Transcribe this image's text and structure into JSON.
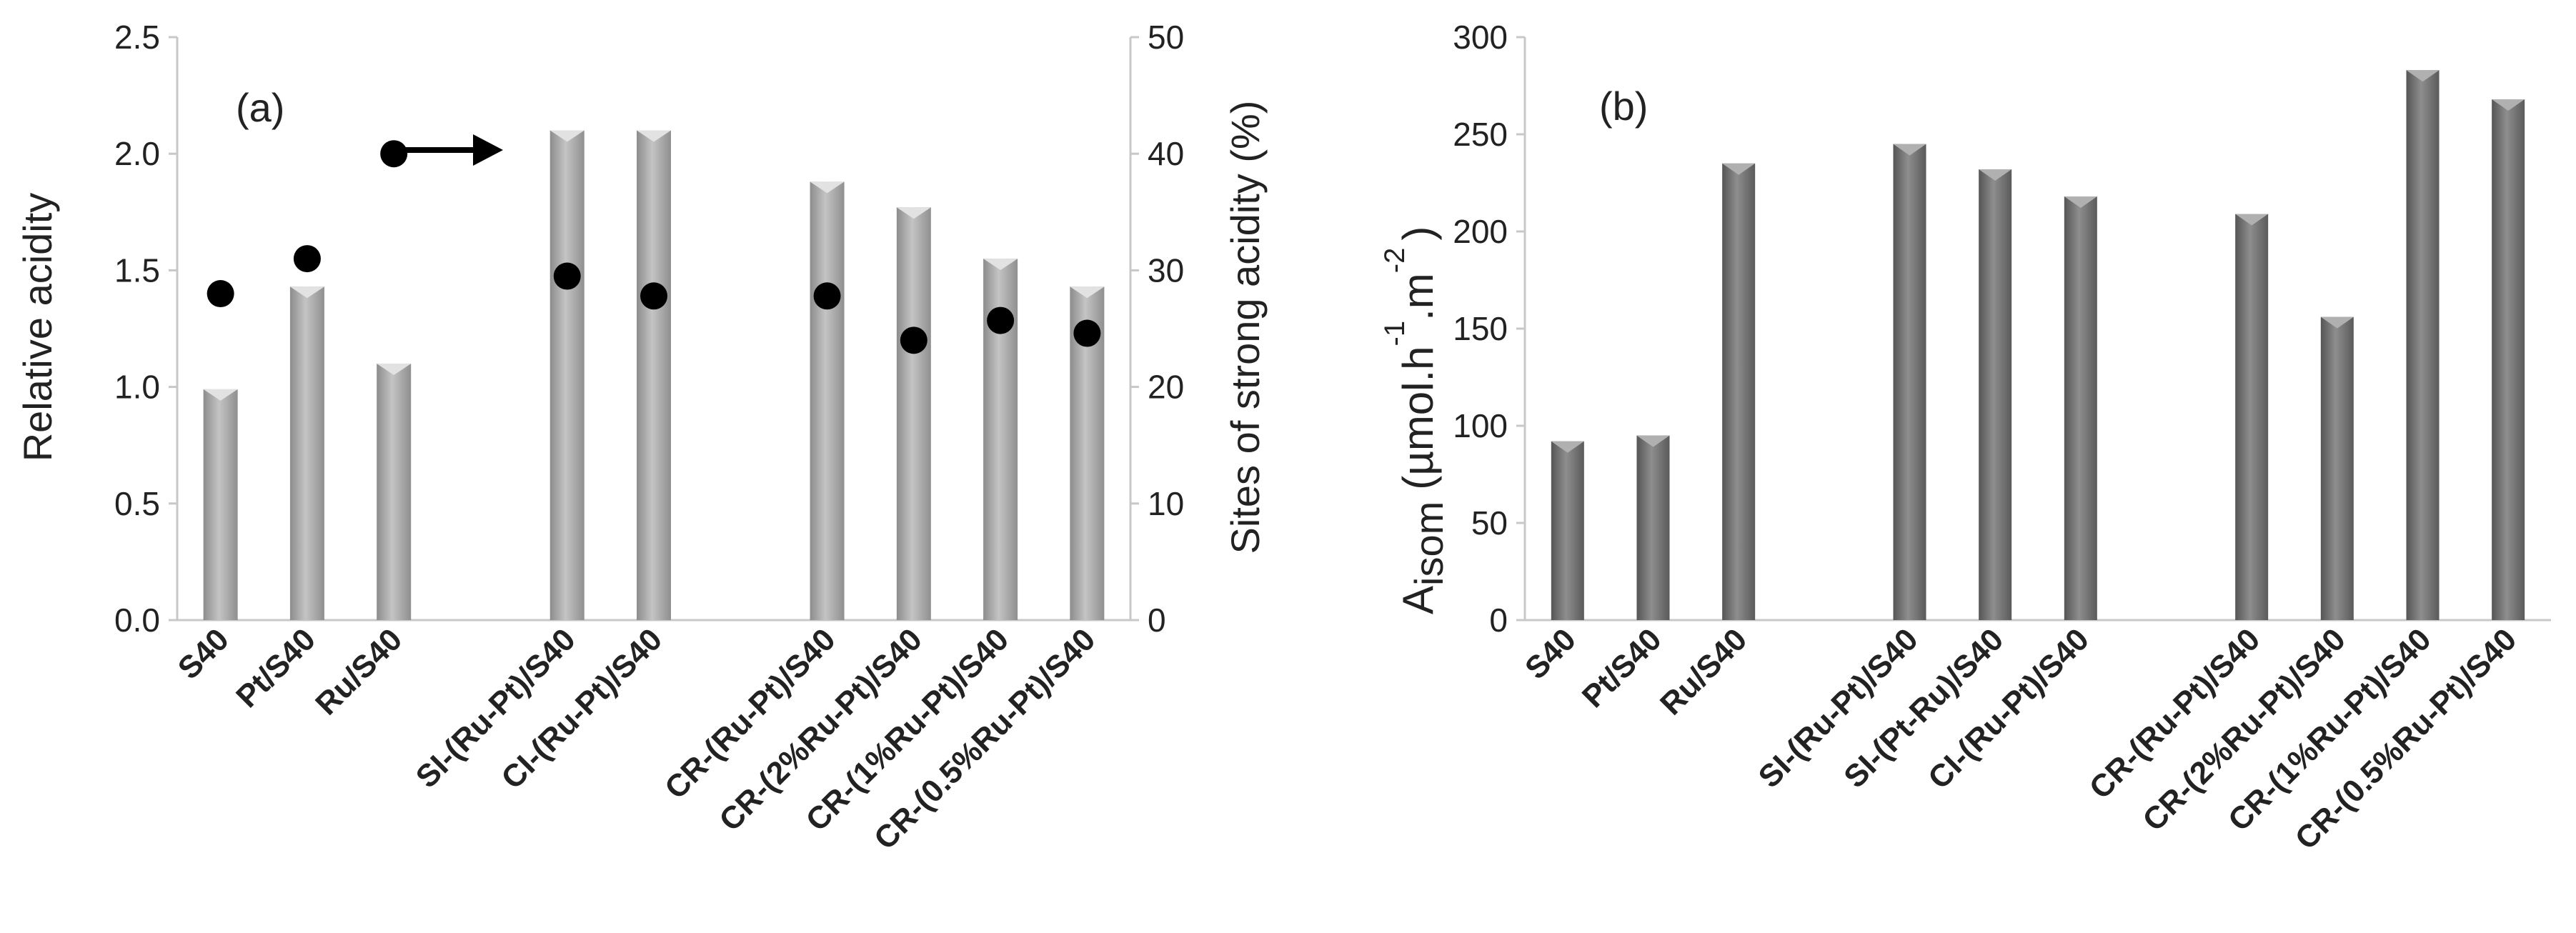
{
  "chart_data": [
    {
      "panel_label": "(a)",
      "type": "bar",
      "categories": [
        "S40",
        "Pt/S40",
        "Ru/S40",
        "",
        "SI-(Ru-Pt)/S40",
        "CI-(Ru-Pt)/S40",
        "",
        "CR-(Ru-Pt)/S40",
        "CR-(2%Ru-Pt)/S40",
        "CR-(1%Ru-Pt)/S40",
        "CR-(0.5%Ru-Pt)/S40"
      ],
      "series": [
        {
          "name": "Relative acidity",
          "kind": "bar",
          "axis": "left",
          "values": [
            0.99,
            1.43,
            1.1,
            null,
            2.1,
            2.1,
            null,
            1.88,
            1.77,
            1.55,
            1.43
          ]
        },
        {
          "name": "Sites of strong acidity (%)",
          "kind": "scatter",
          "axis": "right",
          "values": [
            28.0,
            31.0,
            40.0,
            null,
            29.5,
            27.8,
            null,
            27.8,
            24.0,
            25.7,
            24.6
          ]
        }
      ],
      "ylabel": "Relative acidity",
      "ylim": [
        0,
        2.5
      ],
      "yticks": [
        "0.0",
        "0.5",
        "1.0",
        "1.5",
        "2.0",
        "2.5"
      ],
      "y2label": "Sites of strong acidity (%)",
      "y2lim": [
        0,
        50
      ],
      "y2ticks": [
        "0",
        "10",
        "20",
        "30",
        "40",
        "50"
      ],
      "annotation": "arrow pointing right to secondary axis",
      "colors": {
        "bar": "#a6a6a6",
        "marker": "#000000"
      }
    },
    {
      "panel_label": "(b)",
      "type": "bar",
      "categories": [
        "S40",
        "Pt/S40",
        "Ru/S40",
        "",
        "SI-(Ru-Pt)/S40",
        "SI-(Pt-Ru)/S40",
        "CI-(Ru-Pt)/S40",
        "",
        "CR-(Ru-Pt)/S40",
        "CR-(2%Ru-Pt)/S40",
        "CR-(1%Ru-Pt)/S40",
        "CR-(0.5%Ru-Pt)/S40"
      ],
      "series": [
        {
          "name": "A_isom",
          "kind": "bar",
          "axis": "left",
          "values": [
            92,
            95,
            235,
            null,
            245,
            232,
            218,
            null,
            209,
            156,
            283,
            268
          ]
        }
      ],
      "ylabel_main": "A",
      "ylabel_sub": "isom",
      "ylabel_units": "(µmol.h",
      "ylabel_units_tail": ".m",
      "ylabel_sup1": "-1",
      "ylabel_sup2": "-2",
      "ylabel_close": ")",
      "ylim": [
        0,
        300
      ],
      "yticks": [
        "0",
        "50",
        "100",
        "150",
        "200",
        "250",
        "300"
      ],
      "colors": {
        "bar": "#7f7f7f"
      }
    }
  ]
}
